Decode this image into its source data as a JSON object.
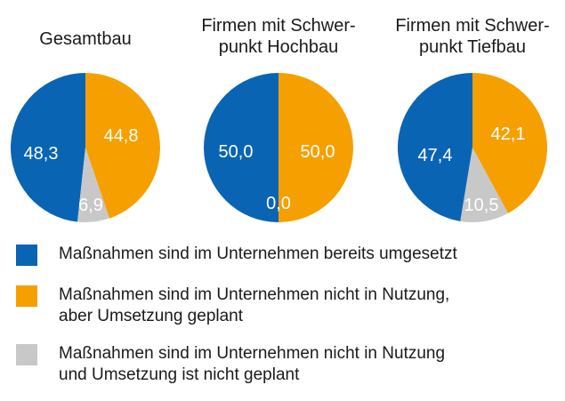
{
  "chart_data": {
    "type": "pie",
    "categories": [
      "Maßnahmen sind im Unternehmen bereits umgesetzt",
      "Maßnahmen sind im Unternehmen nicht in Nutzung,\naber Umsetzung geplant",
      "Maßnahmen sind im Unternehmen nicht in Nutzung\nund Umsetzung ist nicht geplant"
    ],
    "colors": [
      "#0a64b4",
      "#f5a000",
      "#c8c8c8"
    ],
    "legend_position": "bottom",
    "charts": [
      {
        "title": [
          "Gesamtbau"
        ],
        "values": [
          48.3,
          44.8,
          6.9
        ],
        "labels": [
          "48,3",
          "44,8",
          "6,9"
        ]
      },
      {
        "title": [
          "Firmen mit Schwer-",
          "punkt Hochbau"
        ],
        "values": [
          50.0,
          50.0,
          0.0
        ],
        "labels": [
          "50,0",
          "50,0",
          "0,0"
        ]
      },
      {
        "title": [
          "Firmen mit Schwer-",
          "punkt Tiefbau"
        ],
        "values": [
          47.4,
          42.1,
          10.5
        ],
        "labels": [
          "47,4",
          "42,1",
          "10,5"
        ]
      }
    ]
  }
}
